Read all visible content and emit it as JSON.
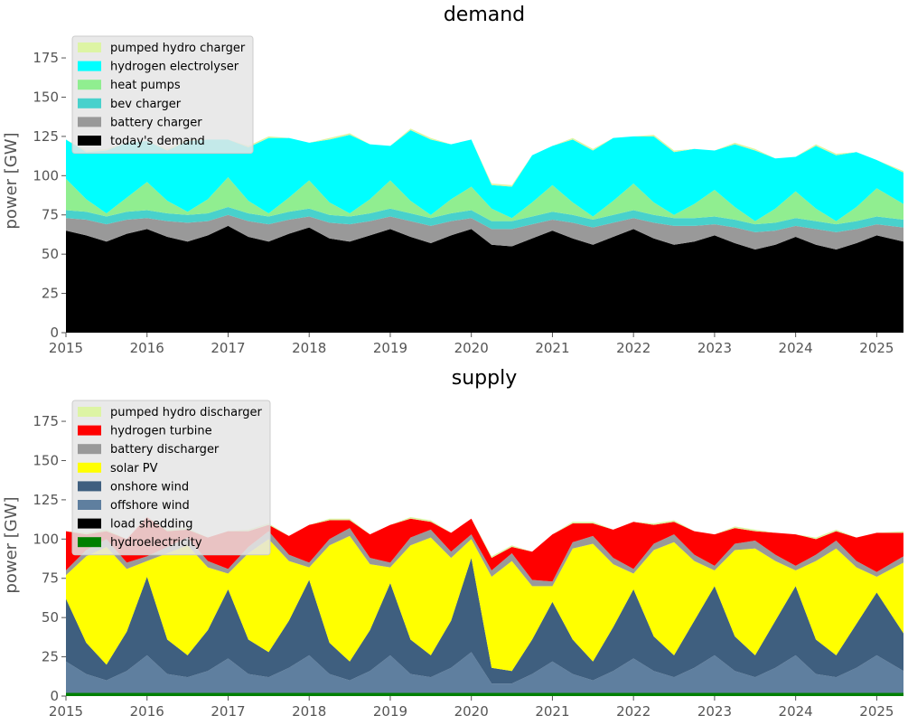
{
  "chart_data": [
    {
      "type": "area",
      "title": "demand",
      "ylabel": "power [GW]",
      "xlabel": "",
      "xlim": [
        2015,
        2025.33
      ],
      "ylim": [
        0,
        190
      ],
      "xticks": [
        "2015",
        "2016",
        "2017",
        "2018",
        "2019",
        "2020",
        "2021",
        "2022",
        "2023",
        "2024",
        "2025"
      ],
      "yticks": [
        "0",
        "25",
        "50",
        "75",
        "100",
        "125",
        "150",
        "175"
      ],
      "legend_position": "top-left",
      "grid": false,
      "legend": [
        {
          "name": "pumped hydro charger",
          "color": "#ddf4a4"
        },
        {
          "name": "hydrogen electrolyser",
          "color": "#00ffff"
        },
        {
          "name": "heat pumps",
          "color": "#90ee90"
        },
        {
          "name": "bev charger",
          "color": "#48d1cc"
        },
        {
          "name": "battery charger",
          "color": "#999999"
        },
        {
          "name": "today's demand",
          "color": "#000000"
        }
      ],
      "stack_order": [
        "today's demand",
        "battery charger",
        "bev charger",
        "heat pumps",
        "hydrogen electrolyser",
        "pumped hydro charger"
      ],
      "x": [
        2015.0,
        2015.25,
        2015.5,
        2015.75,
        2016.0,
        2016.25,
        2016.5,
        2016.75,
        2017.0,
        2017.25,
        2017.5,
        2017.75,
        2018.0,
        2018.25,
        2018.5,
        2018.75,
        2019.0,
        2019.25,
        2019.5,
        2019.75,
        2020.0,
        2020.25,
        2020.5,
        2020.75,
        2021.0,
        2021.25,
        2021.5,
        2021.75,
        2022.0,
        2022.25,
        2022.5,
        2022.75,
        2023.0,
        2023.25,
        2023.5,
        2023.75,
        2024.0,
        2024.25,
        2024.5,
        2024.75,
        2025.0,
        2025.33
      ],
      "series": [
        {
          "name": "today's demand",
          "color": "#000000",
          "values": [
            65,
            62,
            58,
            63,
            66,
            61,
            58,
            62,
            68,
            61,
            58,
            63,
            67,
            60,
            58,
            62,
            66,
            61,
            57,
            62,
            66,
            56,
            55,
            60,
            65,
            60,
            56,
            61,
            66,
            60,
            56,
            58,
            62,
            57,
            53,
            56,
            61,
            56,
            53,
            57,
            62,
            58
          ]
        },
        {
          "name": "battery charger",
          "color": "#999999",
          "values": [
            8,
            10,
            11,
            9,
            7,
            10,
            12,
            9,
            7,
            10,
            11,
            9,
            7,
            10,
            11,
            9,
            8,
            10,
            11,
            9,
            7,
            10,
            11,
            9,
            7,
            10,
            11,
            9,
            7,
            10,
            12,
            10,
            7,
            10,
            11,
            9,
            7,
            10,
            11,
            9,
            7,
            9
          ]
        },
        {
          "name": "bev charger",
          "color": "#48d1cc",
          "values": [
            5,
            5,
            5,
            5,
            5,
            5,
            5,
            5,
            5,
            5,
            5,
            5,
            5,
            5,
            5,
            5,
            5,
            5,
            5,
            5,
            5,
            5,
            5,
            5,
            5,
            5,
            5,
            5,
            5,
            5,
            5,
            5,
            5,
            5,
            5,
            5,
            5,
            5,
            5,
            5,
            5,
            5
          ]
        },
        {
          "name": "heat pumps",
          "color": "#90ee90",
          "values": [
            20,
            8,
            2,
            9,
            18,
            8,
            2,
            9,
            19,
            8,
            2,
            9,
            18,
            8,
            2,
            9,
            18,
            8,
            2,
            9,
            15,
            8,
            2,
            9,
            17,
            8,
            2,
            9,
            17,
            8,
            2,
            9,
            17,
            8,
            2,
            9,
            17,
            8,
            2,
            9,
            18,
            10
          ]
        },
        {
          "name": "hydrogen electrolyser",
          "color": "#00ffff",
          "values": [
            25,
            30,
            40,
            35,
            26,
            32,
            45,
            38,
            24,
            34,
            48,
            38,
            24,
            40,
            50,
            35,
            22,
            45,
            48,
            35,
            30,
            15,
            20,
            30,
            25,
            40,
            42,
            40,
            30,
            42,
            40,
            35,
            25,
            40,
            45,
            32,
            22,
            40,
            42,
            35,
            18,
            20
          ]
        },
        {
          "name": "pumped hydro charger",
          "color": "#ddf4a4",
          "values": [
            0,
            1,
            1,
            0,
            0,
            1,
            1,
            0,
            0,
            1,
            1,
            0,
            0,
            1,
            1,
            0,
            0,
            1,
            1,
            0,
            0,
            1,
            1,
            0,
            0,
            1,
            1,
            0,
            0,
            1,
            1,
            0,
            0,
            1,
            1,
            0,
            0,
            1,
            1,
            0,
            0,
            1
          ]
        }
      ]
    },
    {
      "type": "area",
      "title": "supply",
      "ylabel": "power [GW]",
      "xlabel": "",
      "xlim": [
        2015,
        2025.33
      ],
      "ylim": [
        0,
        190
      ],
      "xticks": [
        "2015",
        "2016",
        "2017",
        "2018",
        "2019",
        "2020",
        "2021",
        "2022",
        "2023",
        "2024",
        "2025"
      ],
      "yticks": [
        "0",
        "25",
        "50",
        "75",
        "100",
        "125",
        "150",
        "175"
      ],
      "legend_position": "top-left",
      "grid": false,
      "legend": [
        {
          "name": "pumped hydro discharger",
          "color": "#ddf4a4"
        },
        {
          "name": "hydrogen turbine",
          "color": "#ff0000"
        },
        {
          "name": "battery discharger",
          "color": "#999999"
        },
        {
          "name": "solar PV",
          "color": "#ffff00"
        },
        {
          "name": "onshore wind",
          "color": "#3f5f7f"
        },
        {
          "name": "offshore wind",
          "color": "#5f7f9f"
        },
        {
          "name": "load shedding",
          "color": "#000000"
        },
        {
          "name": "hydroelectricity",
          "color": "#008000"
        }
      ],
      "stack_order": [
        "hydroelectricity",
        "load shedding",
        "offshore wind",
        "onshore wind",
        "solar PV",
        "battery discharger",
        "hydrogen turbine",
        "pumped hydro discharger"
      ],
      "x": [
        2015.0,
        2015.25,
        2015.5,
        2015.75,
        2016.0,
        2016.25,
        2016.5,
        2016.75,
        2017.0,
        2017.25,
        2017.5,
        2017.75,
        2018.0,
        2018.25,
        2018.5,
        2018.75,
        2019.0,
        2019.25,
        2019.5,
        2019.75,
        2020.0,
        2020.25,
        2020.5,
        2020.75,
        2021.0,
        2021.25,
        2021.5,
        2021.75,
        2022.0,
        2022.25,
        2022.5,
        2022.75,
        2023.0,
        2023.25,
        2023.5,
        2023.75,
        2024.0,
        2024.25,
        2024.5,
        2024.75,
        2025.0,
        2025.33
      ],
      "series": [
        {
          "name": "hydroelectricity",
          "color": "#008000",
          "values": [
            2,
            2,
            2,
            2,
            2,
            2,
            2,
            2,
            2,
            2,
            2,
            2,
            2,
            2,
            2,
            2,
            2,
            2,
            2,
            2,
            2,
            2,
            2,
            2,
            2,
            2,
            2,
            2,
            2,
            2,
            2,
            2,
            2,
            2,
            2,
            2,
            2,
            2,
            2,
            2,
            2,
            2
          ]
        },
        {
          "name": "load shedding",
          "color": "#000000",
          "values": [
            0,
            0,
            0,
            0,
            0,
            0,
            0,
            0,
            0,
            0,
            0,
            0,
            0,
            0,
            0,
            0,
            0,
            0,
            0,
            0,
            0,
            0,
            0,
            0,
            0,
            0,
            0,
            0,
            0,
            0,
            0,
            0,
            0,
            0,
            0,
            0,
            0,
            0,
            0,
            0,
            0,
            0
          ]
        },
        {
          "name": "offshore wind",
          "color": "#5f7f9f",
          "values": [
            20,
            12,
            8,
            14,
            24,
            12,
            10,
            14,
            22,
            12,
            10,
            16,
            24,
            12,
            8,
            14,
            24,
            12,
            10,
            16,
            26,
            6,
            6,
            12,
            20,
            12,
            8,
            14,
            22,
            14,
            10,
            16,
            24,
            14,
            10,
            16,
            24,
            12,
            10,
            16,
            24,
            14
          ]
        },
        {
          "name": "onshore wind",
          "color": "#3f5f7f",
          "values": [
            40,
            20,
            10,
            25,
            50,
            22,
            14,
            26,
            44,
            22,
            16,
            30,
            48,
            20,
            12,
            26,
            46,
            22,
            14,
            30,
            60,
            10,
            8,
            22,
            38,
            22,
            12,
            28,
            44,
            22,
            14,
            30,
            44,
            22,
            14,
            30,
            44,
            22,
            14,
            28,
            40,
            24
          ]
        },
        {
          "name": "solar PV",
          "color": "#ffff00",
          "values": [
            15,
            55,
            75,
            40,
            10,
            55,
            70,
            40,
            10,
            55,
            72,
            38,
            8,
            62,
            80,
            42,
            10,
            60,
            75,
            40,
            12,
            58,
            70,
            34,
            10,
            58,
            75,
            40,
            10,
            55,
            72,
            38,
            10,
            55,
            68,
            38,
            10,
            50,
            68,
            36,
            10,
            45
          ]
        },
        {
          "name": "battery discharger",
          "color": "#999999",
          "values": [
            3,
            4,
            5,
            4,
            3,
            4,
            5,
            4,
            3,
            4,
            5,
            4,
            3,
            4,
            5,
            4,
            3,
            5,
            5,
            4,
            3,
            4,
            5,
            4,
            3,
            4,
            5,
            4,
            3,
            4,
            5,
            4,
            3,
            4,
            5,
            4,
            3,
            4,
            5,
            4,
            3,
            4
          ]
        },
        {
          "name": "hydrogen turbine",
          "color": "#ff0000",
          "values": [
            25,
            10,
            5,
            15,
            25,
            10,
            5,
            15,
            24,
            10,
            4,
            12,
            24,
            12,
            5,
            15,
            24,
            12,
            5,
            12,
            10,
            8,
            4,
            18,
            30,
            12,
            8,
            18,
            30,
            12,
            8,
            15,
            20,
            10,
            6,
            14,
            20,
            10,
            6,
            15,
            25,
            15
          ]
        },
        {
          "name": "pumped hydro discharger",
          "color": "#ddf4a4",
          "values": [
            0,
            1,
            1,
            0,
            0,
            1,
            1,
            0,
            0,
            1,
            1,
            0,
            0,
            1,
            1,
            0,
            0,
            1,
            1,
            0,
            0,
            1,
            1,
            0,
            0,
            1,
            1,
            0,
            0,
            1,
            1,
            0,
            0,
            1,
            1,
            0,
            0,
            1,
            1,
            0,
            0,
            1
          ]
        }
      ]
    }
  ]
}
